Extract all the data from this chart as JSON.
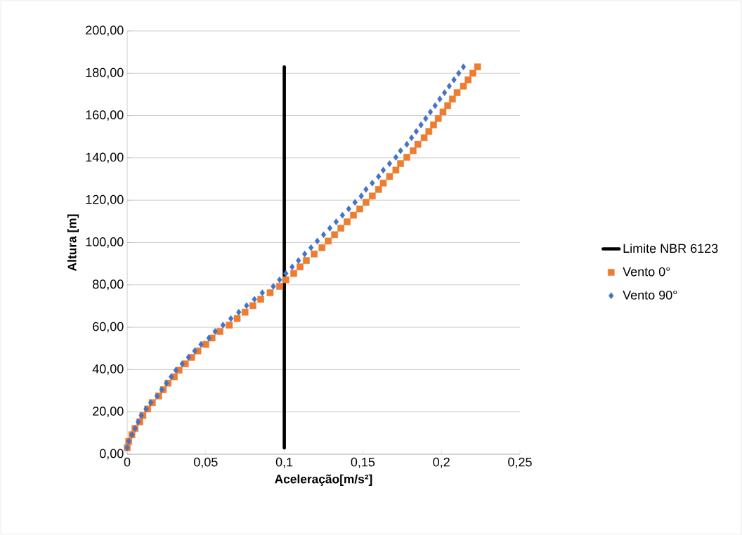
{
  "chart_data": {
    "type": "scatter",
    "xlabel": "Aceleração[m/s²]",
    "ylabel": "Altura [m]",
    "xlim": [
      0,
      0.25
    ],
    "ylim": [
      0,
      200
    ],
    "xticks": [
      {
        "value": 0,
        "label": "0"
      },
      {
        "value": 0.05,
        "label": "0,05"
      },
      {
        "value": 0.1,
        "label": "0,1"
      },
      {
        "value": 0.15,
        "label": "0,15"
      },
      {
        "value": 0.2,
        "label": "0,2"
      },
      {
        "value": 0.25,
        "label": "0,25"
      }
    ],
    "yticks": [
      {
        "value": 0,
        "label": "0,00"
      },
      {
        "value": 20,
        "label": "20,00"
      },
      {
        "value": 40,
        "label": "40,00"
      },
      {
        "value": 60,
        "label": "60,00"
      },
      {
        "value": 80,
        "label": "80,00"
      },
      {
        "value": 100,
        "label": "100,00"
      },
      {
        "value": 120,
        "label": "120,00"
      },
      {
        "value": 140,
        "label": "140,00"
      },
      {
        "value": 160,
        "label": "160,00"
      },
      {
        "value": 180,
        "label": "180,00"
      },
      {
        "value": 200,
        "label": "200,00"
      }
    ],
    "grid": "y",
    "legend": "right",
    "series": [
      {
        "name": "Limite NBR 6123",
        "type": "line",
        "marker": "none",
        "color": "#000000",
        "x": [
          0.1,
          0.1
        ],
        "values": [
          3,
          183
        ]
      },
      {
        "name": "Vento 0°",
        "type": "scatter",
        "marker": "square",
        "color": "#ed7d31",
        "x": [
          0.0,
          0.001,
          0.003,
          0.005,
          0.008,
          0.01,
          0.013,
          0.016,
          0.02,
          0.023,
          0.026,
          0.03,
          0.033,
          0.037,
          0.041,
          0.045,
          0.05,
          0.054,
          0.059,
          0.065,
          0.07,
          0.075,
          0.08,
          0.085,
          0.091,
          0.097,
          0.101,
          0.106,
          0.11,
          0.114,
          0.119,
          0.124,
          0.128,
          0.132,
          0.136,
          0.14,
          0.144,
          0.148,
          0.152,
          0.156,
          0.16,
          0.163,
          0.167,
          0.171,
          0.174,
          0.178,
          0.182,
          0.185,
          0.189,
          0.192,
          0.195,
          0.198,
          0.201,
          0.204,
          0.207,
          0.21,
          0.214,
          0.217,
          0.22,
          0.223
        ],
        "values": [
          3.1,
          6.1,
          9.2,
          12.2,
          15.3,
          18.3,
          21.4,
          24.4,
          27.5,
          30.5,
          33.6,
          36.6,
          39.7,
          42.7,
          45.8,
          48.8,
          51.9,
          54.9,
          58,
          61,
          64.1,
          67.1,
          70.2,
          73.2,
          76.3,
          79.3,
          82.4,
          85.4,
          88.5,
          91.5,
          94.6,
          97.6,
          100.7,
          103.7,
          106.8,
          109.8,
          112.9,
          115.9,
          119,
          122,
          125.1,
          128.1,
          131.2,
          134.2,
          137.3,
          140.3,
          143.4,
          146.4,
          149.5,
          152.5,
          155.6,
          158.6,
          161.7,
          164.7,
          167.8,
          170.8,
          173.9,
          176.9,
          180,
          183
        ]
      },
      {
        "name": "Vento 90°",
        "type": "scatter",
        "marker": "diamond",
        "color": "#4472c4",
        "x": [
          0.0,
          0.001,
          0.003,
          0.005,
          0.007,
          0.009,
          0.012,
          0.015,
          0.019,
          0.022,
          0.025,
          0.028,
          0.031,
          0.035,
          0.039,
          0.043,
          0.047,
          0.052,
          0.056,
          0.061,
          0.066,
          0.071,
          0.076,
          0.081,
          0.086,
          0.093,
          0.097,
          0.101,
          0.105,
          0.109,
          0.113,
          0.117,
          0.121,
          0.125,
          0.129,
          0.133,
          0.137,
          0.141,
          0.145,
          0.149,
          0.152,
          0.156,
          0.16,
          0.163,
          0.167,
          0.171,
          0.174,
          0.178,
          0.181,
          0.184,
          0.187,
          0.19,
          0.193,
          0.196,
          0.199,
          0.202,
          0.205,
          0.208,
          0.211,
          0.214
        ],
        "values": [
          3.1,
          6.1,
          9.2,
          12.2,
          15.3,
          18.3,
          21.4,
          24.4,
          27.5,
          30.5,
          33.6,
          36.6,
          39.7,
          42.7,
          45.8,
          48.8,
          51.9,
          54.9,
          58,
          61,
          64.1,
          67.1,
          70.2,
          73.2,
          76.3,
          79.3,
          82.4,
          85.4,
          88.5,
          91.5,
          94.6,
          97.6,
          100.7,
          103.7,
          106.8,
          109.8,
          112.9,
          115.9,
          119,
          122,
          125.1,
          128.1,
          131.2,
          134.2,
          137.3,
          140.3,
          143.4,
          146.4,
          149.5,
          152.5,
          155.6,
          158.6,
          161.7,
          164.7,
          167.8,
          170.8,
          173.9,
          176.9,
          180,
          183
        ]
      }
    ]
  }
}
